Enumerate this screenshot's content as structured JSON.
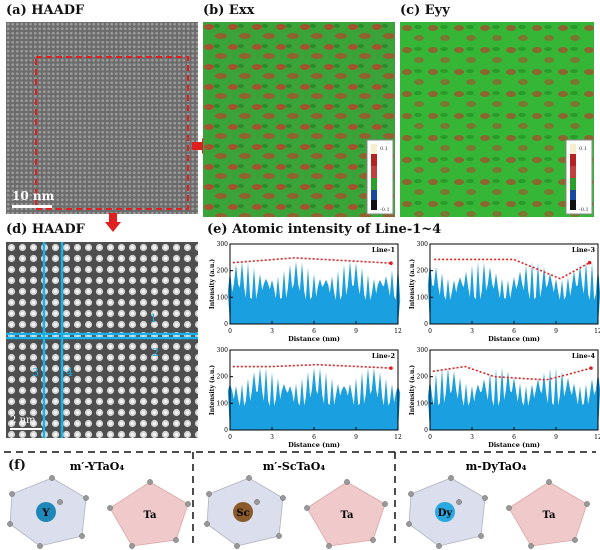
{
  "panels": {
    "a": {
      "label": "(a) HAADF",
      "scalebar": "10 nm"
    },
    "b": {
      "label": "(b) Exx"
    },
    "c": {
      "label": "(c) Eyy"
    },
    "d": {
      "label": "(d) HAADF",
      "scalebar": "2 nm",
      "line_labels": [
        "1",
        "2",
        "3",
        "4"
      ]
    },
    "e": {
      "label": "(e) Atomic intensity of Line-1~4"
    },
    "f": {
      "label": "(f)"
    }
  },
  "colors": {
    "strain_green": "#2eaa2e",
    "strain_red": "#c0392b",
    "profile_blue": "#1a9fe0",
    "arrow_red": "#e02020",
    "line_cyan": "#1ab0e8"
  },
  "colorbar_ticks": [
    "0.1",
    "-0.1"
  ],
  "chart_data": [
    {
      "type": "area",
      "title": "Line-1",
      "xlabel": "Distance (nm)",
      "ylabel": "Intensity (a.u.)",
      "xticks": [
        "0",
        "3",
        "6",
        "9",
        "12"
      ],
      "yticks": [
        "0",
        "100",
        "200",
        "300"
      ],
      "xlim": [
        0,
        12
      ],
      "ylim": [
        0,
        300
      ]
    },
    {
      "type": "area",
      "title": "Line-3",
      "xlabel": "Distance (nm)",
      "ylabel": "Intensity (a.u.)",
      "xticks": [
        "0",
        "3",
        "6",
        "9",
        "12"
      ],
      "yticks": [
        "0",
        "100",
        "200",
        "300"
      ],
      "xlim": [
        0,
        12
      ],
      "ylim": [
        0,
        300
      ]
    },
    {
      "type": "area",
      "title": "Line-2",
      "xlabel": "Distance (nm)",
      "ylabel": "Intensity (a.u.)",
      "xticks": [
        "0",
        "3",
        "6",
        "9",
        "12"
      ],
      "yticks": [
        "0",
        "100",
        "200",
        "300"
      ],
      "xlim": [
        0,
        12
      ],
      "ylim": [
        0,
        300
      ]
    },
    {
      "type": "area",
      "title": "Line-4",
      "xlabel": "Distance (nm)",
      "ylabel": "Intensity (a.u.)",
      "xticks": [
        "0",
        "3",
        "6",
        "9",
        "12"
      ],
      "yticks": [
        "0",
        "100",
        "200",
        "300"
      ],
      "xlim": [
        0,
        12
      ],
      "ylim": [
        0,
        300
      ]
    }
  ],
  "structures": [
    {
      "title_prefix": "m′-",
      "title": "YTaO₄",
      "cation": "Y",
      "cation_color": "#1f88b8",
      "other": "Ta"
    },
    {
      "title_prefix": "m′-",
      "title": "ScTaO₄",
      "cation": "Sc",
      "cation_color": "#8a5a2b",
      "other": "Ta"
    },
    {
      "title_prefix": "m-",
      "title": "DyTaO₄",
      "cation": "Dy",
      "cation_color": "#2aa8e0",
      "other": "Ta"
    }
  ]
}
